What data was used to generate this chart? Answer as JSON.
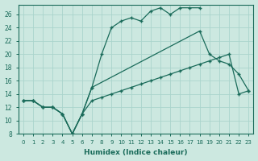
{
  "xlabel": "Humidex (Indice chaleur)",
  "bg_color": "#cce8e0",
  "line_color": "#1a6b5a",
  "grid_color": "#aad4cc",
  "xlim": [
    -0.5,
    23.5
  ],
  "ylim": [
    8,
    27.5
  ],
  "xticks": [
    0,
    1,
    2,
    3,
    4,
    5,
    6,
    7,
    8,
    9,
    10,
    11,
    12,
    13,
    14,
    15,
    16,
    17,
    18,
    19,
    20,
    21,
    22,
    23
  ],
  "yticks": [
    8,
    10,
    12,
    14,
    16,
    18,
    20,
    22,
    24,
    26
  ],
  "series": [
    {
      "x": [
        0,
        1,
        2,
        3,
        4,
        5,
        6,
        7,
        8,
        9,
        10,
        11,
        12,
        13,
        14,
        15,
        16,
        17,
        18
      ],
      "y": [
        13,
        13,
        12,
        12,
        11,
        8,
        11,
        15,
        20,
        24,
        25,
        25.5,
        25,
        26.5,
        27,
        26,
        27,
        27,
        27
      ]
    },
    {
      "x": [
        0,
        1,
        2,
        3,
        4,
        5,
        6,
        7,
        18,
        19,
        20,
        21,
        22,
        23
      ],
      "y": [
        13,
        13,
        12,
        12,
        11,
        8,
        11,
        15,
        23.5,
        20,
        19,
        18.5,
        17,
        14.5
      ]
    },
    {
      "x": [
        0,
        1,
        2,
        3,
        4,
        5,
        6,
        7,
        8,
        9,
        10,
        11,
        12,
        13,
        14,
        15,
        16,
        17,
        18,
        19,
        20,
        21,
        22,
        23
      ],
      "y": [
        13,
        13,
        12,
        12,
        11,
        8,
        11,
        13,
        13.5,
        14,
        14.5,
        15,
        15.5,
        16,
        16.5,
        17,
        17.5,
        18,
        18.5,
        19,
        19.5,
        20,
        14,
        14.5
      ]
    }
  ]
}
